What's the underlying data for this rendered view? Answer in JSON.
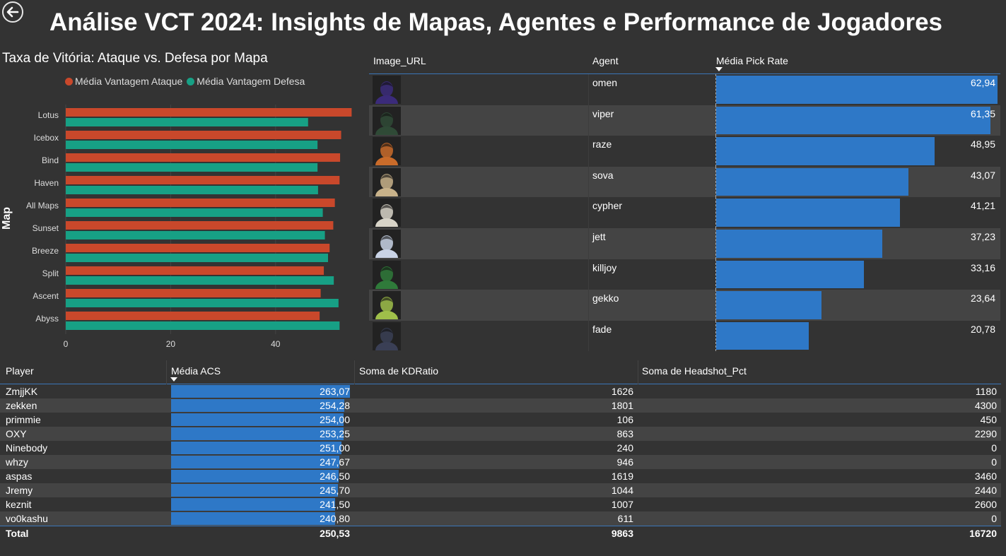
{
  "page": {
    "title": "Análise VCT 2024: Insights de Mapas, Agentes e Performance de Jogadores",
    "back_icon": "back-arrow-icon"
  },
  "chart_data": {
    "type": "bar",
    "orientation": "horizontal",
    "title": "Taxa de Vitória: Ataque vs. Defesa por Mapa",
    "ylabel": "Map",
    "xlabel": "",
    "categories": [
      "Lotus",
      "Icebox",
      "Bind",
      "Haven",
      "All Maps",
      "Sunset",
      "Breeze",
      "Split",
      "Ascent",
      "Abyss"
    ],
    "series": [
      {
        "name": "Média Vantagem Ataque",
        "color": "#c9482b",
        "values": [
          54.5,
          52.5,
          52.3,
          52.2,
          51.3,
          51.0,
          50.3,
          49.2,
          48.6,
          48.4
        ]
      },
      {
        "name": "Média Vantagem Defesa",
        "color": "#17a085",
        "values": [
          46.2,
          48.0,
          48.0,
          48.1,
          49.0,
          49.4,
          50.0,
          51.1,
          52.0,
          52.2
        ]
      }
    ],
    "xticks": [
      "0",
      "20",
      "40"
    ],
    "xlim": [
      0,
      55
    ],
    "grid": true,
    "legend": "top"
  },
  "agents": {
    "headers": {
      "image": "Image_URL",
      "agent": "Agent",
      "pick": "Média Pick Rate"
    },
    "max_value": 63,
    "rows": [
      {
        "name": "omen",
        "value": 62.94,
        "label": "62,94",
        "icon": "omen-portrait-icon",
        "color": "#3b2b7a"
      },
      {
        "name": "viper",
        "value": 61.35,
        "label": "61,35",
        "icon": "viper-portrait-icon",
        "color": "#2f4a36"
      },
      {
        "name": "raze",
        "value": 48.95,
        "label": "48,95",
        "icon": "raze-portrait-icon",
        "color": "#c96b2a"
      },
      {
        "name": "sova",
        "value": 43.07,
        "label": "43,07",
        "icon": "sova-portrait-icon",
        "color": "#c8b28a"
      },
      {
        "name": "cypher",
        "value": 41.21,
        "label": "41,21",
        "icon": "cypher-portrait-icon",
        "color": "#d8d4c8"
      },
      {
        "name": "jett",
        "value": 37.23,
        "label": "37,23",
        "icon": "jett-portrait-icon",
        "color": "#c9d3e6"
      },
      {
        "name": "killjoy",
        "value": 33.16,
        "label": "33,16",
        "icon": "killjoy-portrait-icon",
        "color": "#2f7a3a"
      },
      {
        "name": "gekko",
        "value": 23.64,
        "label": "23,64",
        "icon": "gekko-portrait-icon",
        "color": "#9fbf4a"
      },
      {
        "name": "fade",
        "value": 20.78,
        "label": "20,78",
        "icon": "fade-portrait-icon",
        "color": "#3a3f55"
      }
    ]
  },
  "players": {
    "headers": {
      "player": "Player",
      "acs": "Média ACS",
      "kd": "Soma de KDRatio",
      "hs": "Soma de Headshot_Pct"
    },
    "acs_max": 263.07,
    "rows": [
      {
        "player": "ZmjjKK",
        "acs": 263.07,
        "acs_label": "263,07",
        "kd": "1626",
        "hs": "1180"
      },
      {
        "player": "zekken",
        "acs": 254.28,
        "acs_label": "254,28",
        "kd": "1801",
        "hs": "4300"
      },
      {
        "player": "primmie",
        "acs": 254.0,
        "acs_label": "254,00",
        "kd": "106",
        "hs": "450"
      },
      {
        "player": "OXY",
        "acs": 253.25,
        "acs_label": "253,25",
        "kd": "863",
        "hs": "2290"
      },
      {
        "player": "Ninebody",
        "acs": 251.0,
        "acs_label": "251,00",
        "kd": "240",
        "hs": "0"
      },
      {
        "player": "whzy",
        "acs": 247.67,
        "acs_label": "247,67",
        "kd": "946",
        "hs": "0"
      },
      {
        "player": "aspas",
        "acs": 246.5,
        "acs_label": "246,50",
        "kd": "1619",
        "hs": "3460"
      },
      {
        "player": "Jremy",
        "acs": 245.7,
        "acs_label": "245,70",
        "kd": "1044",
        "hs": "2440"
      },
      {
        "player": "keznit",
        "acs": 241.5,
        "acs_label": "241,50",
        "kd": "1007",
        "hs": "2600"
      },
      {
        "player": "vo0kashu",
        "acs": 240.8,
        "acs_label": "240,80",
        "kd": "611",
        "hs": "0"
      }
    ],
    "total": {
      "label": "Total",
      "acs": "250,53",
      "kd": "9863",
      "hs": "16720"
    }
  }
}
